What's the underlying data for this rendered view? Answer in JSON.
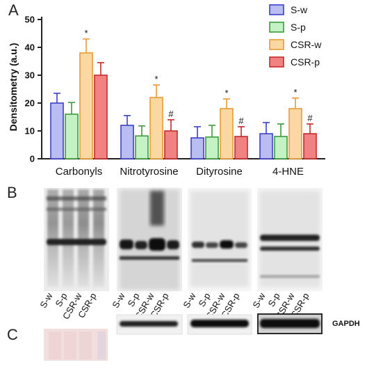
{
  "panels": {
    "a": "A",
    "b": "B",
    "c": "C"
  },
  "chart_data": {
    "type": "bar",
    "ylabel": "Densitometry (a.u.)",
    "ylim": [
      0,
      50
    ],
    "yticks": [
      0,
      10,
      20,
      30,
      40,
      50
    ],
    "legend_position": "top-right",
    "categories": [
      "Carbonyls",
      "Nitrotyrosine",
      "Dityrosine",
      "4-HNE"
    ],
    "series": [
      {
        "name": "S-w",
        "fill": "#b9bdf2",
        "stroke": "#3b3fc9",
        "values": [
          20.0,
          12.0,
          7.5,
          9.0
        ],
        "errors": [
          3.5,
          3.5,
          4.0,
          4.0
        ],
        "marks": [
          "",
          "",
          "",
          ""
        ]
      },
      {
        "name": "S-p",
        "fill": "#c4f2c4",
        "stroke": "#3a9b3a",
        "values": [
          16.0,
          8.2,
          7.8,
          8.0
        ],
        "errors": [
          4.2,
          3.6,
          4.2,
          4.5
        ],
        "marks": [
          "",
          "",
          "",
          ""
        ]
      },
      {
        "name": "CSR-w",
        "fill": "#fbd7a4",
        "stroke": "#e79b37",
        "values": [
          38.0,
          22.0,
          18.0,
          18.0
        ],
        "errors": [
          5.0,
          4.5,
          3.5,
          3.8
        ],
        "marks": [
          "*",
          "*",
          "*",
          "*"
        ]
      },
      {
        "name": "CSR-p",
        "fill": "#f08282",
        "stroke": "#c42a2a",
        "values": [
          30.0,
          10.0,
          8.0,
          9.0
        ],
        "errors": [
          4.5,
          4.0,
          3.5,
          3.5
        ],
        "marks": [
          "",
          "#",
          "#",
          "#"
        ]
      }
    ]
  },
  "blot_lanes": [
    [
      "S-w",
      "S-p",
      "CSR-w",
      "CSR-p"
    ],
    [
      "S-w",
      "S-p",
      "CSR-w",
      "CSR-p"
    ],
    [
      "S-w",
      "S-p",
      "CSR-w",
      "CSR-p"
    ],
    [
      "S-w",
      "S-p",
      "CSR-w",
      "CSR-p"
    ]
  ],
  "loading_control_label": "GAPDH",
  "colors": {
    "axis": "#222222",
    "blot_dark": "#1a1a1a",
    "ponceau": "#f3dede"
  }
}
